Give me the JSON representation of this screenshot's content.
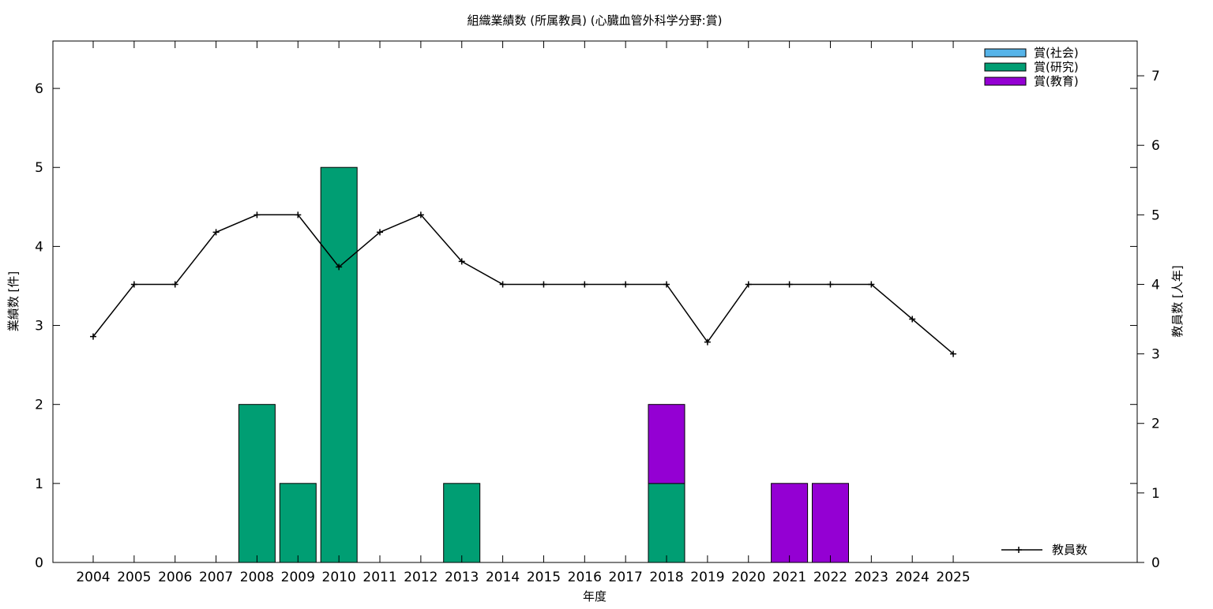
{
  "chart_data": {
    "type": "bar",
    "title": "組織業績数 (所属教員) (心臓血管外科学分野:賞)",
    "xlabel": "年度",
    "ylabel_left": "業績数 [件]",
    "ylabel_right": "教員数 [人年]",
    "categories": [
      "2004",
      "2005",
      "2006",
      "2007",
      "2008",
      "2009",
      "2010",
      "2011",
      "2012",
      "2013",
      "2014",
      "2015",
      "2016",
      "2017",
      "2018",
      "2019",
      "2020",
      "2021",
      "2022",
      "2023",
      "2024",
      "2025"
    ],
    "ylim_left": [
      0,
      6.6
    ],
    "yticks_left": [
      0,
      1,
      2,
      3,
      4,
      5,
      6
    ],
    "ylim_right": [
      0,
      7.5
    ],
    "yticks_right": [
      0,
      1,
      2,
      3,
      4,
      5,
      6,
      7
    ],
    "stacked": true,
    "series": [
      {
        "name": "賞(社会)",
        "color": "#56b4e9",
        "values": [
          0,
          0,
          0,
          0,
          0,
          0,
          0,
          0,
          0,
          0,
          0,
          0,
          0,
          0,
          0,
          0,
          0,
          0,
          0,
          0,
          0,
          0
        ]
      },
      {
        "name": "賞(研究)",
        "color": "#009e73",
        "values": [
          0,
          0,
          0,
          0,
          2,
          1,
          5,
          0,
          0,
          1,
          0,
          0,
          0,
          0,
          1,
          0,
          0,
          0,
          0,
          0,
          0,
          0
        ]
      },
      {
        "name": "賞(教育)",
        "color": "#9400d3",
        "values": [
          0,
          0,
          0,
          0,
          0,
          0,
          0,
          0,
          0,
          0,
          0,
          0,
          0,
          0,
          1,
          0,
          0,
          1,
          1,
          0,
          0,
          0
        ]
      }
    ],
    "line_series": {
      "name": "教員数",
      "color": "#000000",
      "axis": "right",
      "values": [
        3.25,
        4,
        4,
        4.75,
        5,
        5,
        4.25,
        4.75,
        5,
        4.33,
        4,
        4,
        4,
        4,
        4,
        3.17,
        4,
        4,
        4,
        4,
        3.5,
        3
      ]
    },
    "legend_position": "top-right",
    "grid": false
  }
}
